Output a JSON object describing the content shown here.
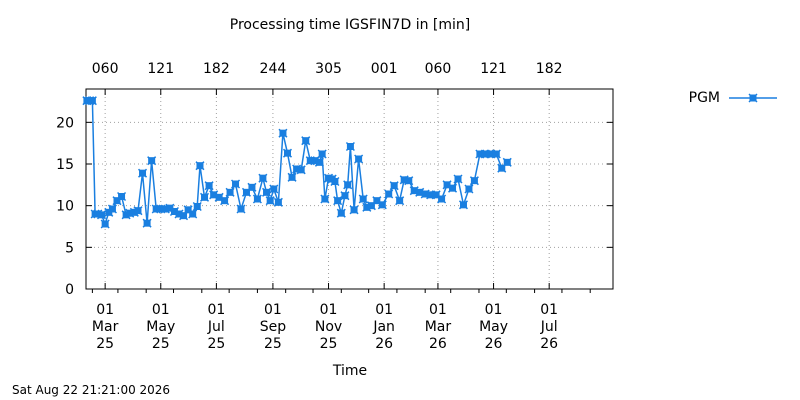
{
  "chart_data": {
    "type": "line",
    "title": "Processing time IGSFIN7D in [min]",
    "xlabel": "Time",
    "ylabel": "",
    "ylim": [
      0,
      24
    ],
    "xlim": [
      "2025-02-08",
      "2026-09-09"
    ],
    "yticks": [
      0,
      5,
      10,
      15,
      20
    ],
    "grid": true,
    "legend_position": "top-right",
    "x_ticks_bottom": [
      {
        "date": "2025-03-01",
        "label": [
          "01",
          "Mar",
          "25"
        ]
      },
      {
        "date": "2025-05-01",
        "label": [
          "01",
          "May",
          "25"
        ]
      },
      {
        "date": "2025-07-01",
        "label": [
          "01",
          "Jul",
          "25"
        ]
      },
      {
        "date": "2025-09-01",
        "label": [
          "01",
          "Sep",
          "25"
        ]
      },
      {
        "date": "2025-11-01",
        "label": [
          "01",
          "Nov",
          "25"
        ]
      },
      {
        "date": "2026-01-01",
        "label": [
          "01",
          "Jan",
          "26"
        ]
      },
      {
        "date": "2026-03-01",
        "label": [
          "01",
          "Mar",
          "26"
        ]
      },
      {
        "date": "2026-05-01",
        "label": [
          "01",
          "May",
          "26"
        ]
      },
      {
        "date": "2026-07-01",
        "label": [
          "01",
          "Jul",
          "26"
        ]
      }
    ],
    "x_ticks_top": [
      {
        "date": "2025-03-01",
        "label": "060"
      },
      {
        "date": "2025-05-01",
        "label": "121"
      },
      {
        "date": "2025-07-01",
        "label": "182"
      },
      {
        "date": "2025-09-01",
        "label": "244"
      },
      {
        "date": "2025-11-01",
        "label": "305"
      },
      {
        "date": "2026-01-01",
        "label": "001"
      },
      {
        "date": "2026-03-01",
        "label": "060"
      },
      {
        "date": "2026-05-01",
        "label": "121"
      },
      {
        "date": "2026-07-01",
        "label": "182"
      }
    ],
    "series": [
      {
        "name": "PGM",
        "color": "#1a7fe0",
        "marker": "x-square",
        "points": [
          [
            "2025-02-09",
            22.6
          ],
          [
            "2025-02-12",
            22.6
          ],
          [
            "2025-02-15",
            22.6
          ],
          [
            "2025-02-18",
            9.0
          ],
          [
            "2025-02-21",
            9.0
          ],
          [
            "2025-02-25",
            8.9
          ],
          [
            "2025-03-01",
            7.8
          ],
          [
            "2025-03-05",
            9.2
          ],
          [
            "2025-03-09",
            9.6
          ],
          [
            "2025-03-14",
            10.6
          ],
          [
            "2025-03-19",
            11.1
          ],
          [
            "2025-03-24",
            8.9
          ],
          [
            "2025-03-28",
            9.1
          ],
          [
            "2025-04-02",
            9.2
          ],
          [
            "2025-04-06",
            9.4
          ],
          [
            "2025-04-11",
            13.9
          ],
          [
            "2025-04-16",
            7.9
          ],
          [
            "2025-04-21",
            15.4
          ],
          [
            "2025-04-26",
            9.6
          ],
          [
            "2025-05-01",
            9.6
          ],
          [
            "2025-05-06",
            9.6
          ],
          [
            "2025-05-11",
            9.7
          ],
          [
            "2025-05-16",
            9.3
          ],
          [
            "2025-05-21",
            9.0
          ],
          [
            "2025-05-26",
            8.8
          ],
          [
            "2025-05-31",
            9.5
          ],
          [
            "2025-06-05",
            9.0
          ],
          [
            "2025-06-10",
            9.9
          ],
          [
            "2025-06-13",
            14.8
          ],
          [
            "2025-06-18",
            11.0
          ],
          [
            "2025-06-23",
            12.4
          ],
          [
            "2025-06-28",
            11.3
          ],
          [
            "2025-07-04",
            11.0
          ],
          [
            "2025-07-10",
            10.6
          ],
          [
            "2025-07-16",
            11.6
          ],
          [
            "2025-07-22",
            12.6
          ],
          [
            "2025-07-28",
            9.6
          ],
          [
            "2025-08-03",
            11.6
          ],
          [
            "2025-08-09",
            12.2
          ],
          [
            "2025-08-15",
            10.8
          ],
          [
            "2025-08-21",
            13.3
          ],
          [
            "2025-08-25",
            11.6
          ],
          [
            "2025-08-29",
            10.6
          ],
          [
            "2025-09-02",
            12.0
          ],
          [
            "2025-09-07",
            10.4
          ],
          [
            "2025-09-12",
            18.7
          ],
          [
            "2025-09-17",
            16.3
          ],
          [
            "2025-09-22",
            13.4
          ],
          [
            "2025-09-27",
            14.4
          ],
          [
            "2025-10-02",
            14.3
          ],
          [
            "2025-10-07",
            17.8
          ],
          [
            "2025-10-12",
            15.4
          ],
          [
            "2025-10-17",
            15.4
          ],
          [
            "2025-10-22",
            15.2
          ],
          [
            "2025-10-25",
            16.2
          ],
          [
            "2025-10-28",
            10.8
          ],
          [
            "2025-11-01",
            13.3
          ],
          [
            "2025-11-05",
            13.2
          ],
          [
            "2025-11-08",
            12.9
          ],
          [
            "2025-11-11",
            10.6
          ],
          [
            "2025-11-15",
            9.1
          ],
          [
            "2025-11-19",
            11.2
          ],
          [
            "2025-11-22",
            12.5
          ],
          [
            "2025-11-25",
            17.1
          ],
          [
            "2025-11-29",
            9.5
          ],
          [
            "2025-12-04",
            15.6
          ],
          [
            "2025-12-09",
            10.8
          ],
          [
            "2025-12-13",
            9.8
          ],
          [
            "2025-12-18",
            10.0
          ],
          [
            "2025-12-24",
            10.6
          ],
          [
            "2025-12-30",
            10.1
          ],
          [
            "2026-01-06",
            11.4
          ],
          [
            "2026-01-12",
            12.4
          ],
          [
            "2026-01-18",
            10.6
          ],
          [
            "2026-01-23",
            13.1
          ],
          [
            "2026-01-28",
            13.0
          ],
          [
            "2026-02-03",
            11.8
          ],
          [
            "2026-02-09",
            11.6
          ],
          [
            "2026-02-15",
            11.4
          ],
          [
            "2026-02-21",
            11.3
          ],
          [
            "2026-02-27",
            11.3
          ],
          [
            "2026-03-05",
            10.8
          ],
          [
            "2026-03-11",
            12.5
          ],
          [
            "2026-03-17",
            12.1
          ],
          [
            "2026-03-23",
            13.2
          ],
          [
            "2026-03-29",
            10.1
          ],
          [
            "2026-04-04",
            12.0
          ],
          [
            "2026-04-10",
            13.0
          ],
          [
            "2026-04-16",
            16.2
          ],
          [
            "2026-04-22",
            16.2
          ],
          [
            "2026-04-28",
            16.2
          ],
          [
            "2026-05-04",
            16.2
          ],
          [
            "2026-05-10",
            14.5
          ],
          [
            "2026-05-16",
            15.2
          ]
        ]
      }
    ]
  },
  "footer": {
    "timestamp": "Sat Aug 22 21:21:00 2026"
  }
}
